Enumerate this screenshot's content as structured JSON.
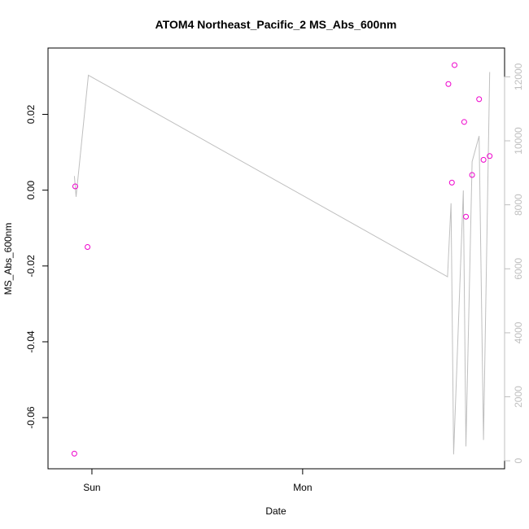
{
  "chart_data": {
    "type": "scatter",
    "title": "ATOM4 Northeast_Pacific_2 MS_Abs_600nm",
    "xlabel": "Date",
    "ylabel": "MS_Abs_600nm",
    "x_ticks": [
      "Sun",
      "Mon"
    ],
    "x_tick_hours": [
      0,
      24
    ],
    "xlim_hours": [
      -5.0,
      47.0
    ],
    "ylim": [
      -0.0735,
      0.0375
    ],
    "y_ticks": [
      -0.06,
      -0.04,
      -0.02,
      0.0,
      0.02
    ],
    "y_tick_labels": [
      "-0.06",
      "-0.04",
      "-0.02",
      "0.00",
      "0.02"
    ],
    "y2lim": [
      -250,
      12900
    ],
    "y2_ticks": [
      0,
      2000,
      4000,
      6000,
      8000,
      10000,
      12000
    ],
    "y2_tick_labels": [
      "0",
      "2000",
      "4000",
      "6000",
      "8000",
      "10000",
      "12000"
    ],
    "grid": false,
    "series": [
      {
        "axis": "left",
        "color": "#ee00cc",
        "marker": "open-circle",
        "points": [
          {
            "x": -2.0,
            "y": -0.0695
          },
          {
            "x": -1.9,
            "y": 0.001
          },
          {
            "x": -0.5,
            "y": -0.015
          },
          {
            "x": 40.6,
            "y": 0.028
          },
          {
            "x": 41.0,
            "y": 0.002
          },
          {
            "x": 41.3,
            "y": 0.033
          },
          {
            "x": 42.4,
            "y": 0.018
          },
          {
            "x": 42.6,
            "y": -0.007
          },
          {
            "x": 43.3,
            "y": 0.004
          },
          {
            "x": 44.1,
            "y": 0.024
          },
          {
            "x": 44.6,
            "y": 0.008
          },
          {
            "x": 45.3,
            "y": 0.009
          }
        ]
      },
      {
        "axis": "right",
        "color": "#bfbfbf",
        "marker": "line",
        "points": [
          {
            "x": -2.0,
            "y": 8900
          },
          {
            "x": -1.8,
            "y": 8250
          },
          {
            "x": -0.4,
            "y": 12050
          },
          {
            "x": 40.5,
            "y": 5750
          },
          {
            "x": 40.9,
            "y": 8050
          },
          {
            "x": 41.2,
            "y": 200
          },
          {
            "x": 42.3,
            "y": 8450
          },
          {
            "x": 42.6,
            "y": 450
          },
          {
            "x": 43.3,
            "y": 9350
          },
          {
            "x": 44.1,
            "y": 10150
          },
          {
            "x": 44.6,
            "y": 650
          },
          {
            "x": 45.3,
            "y": 12150
          }
        ]
      }
    ]
  }
}
